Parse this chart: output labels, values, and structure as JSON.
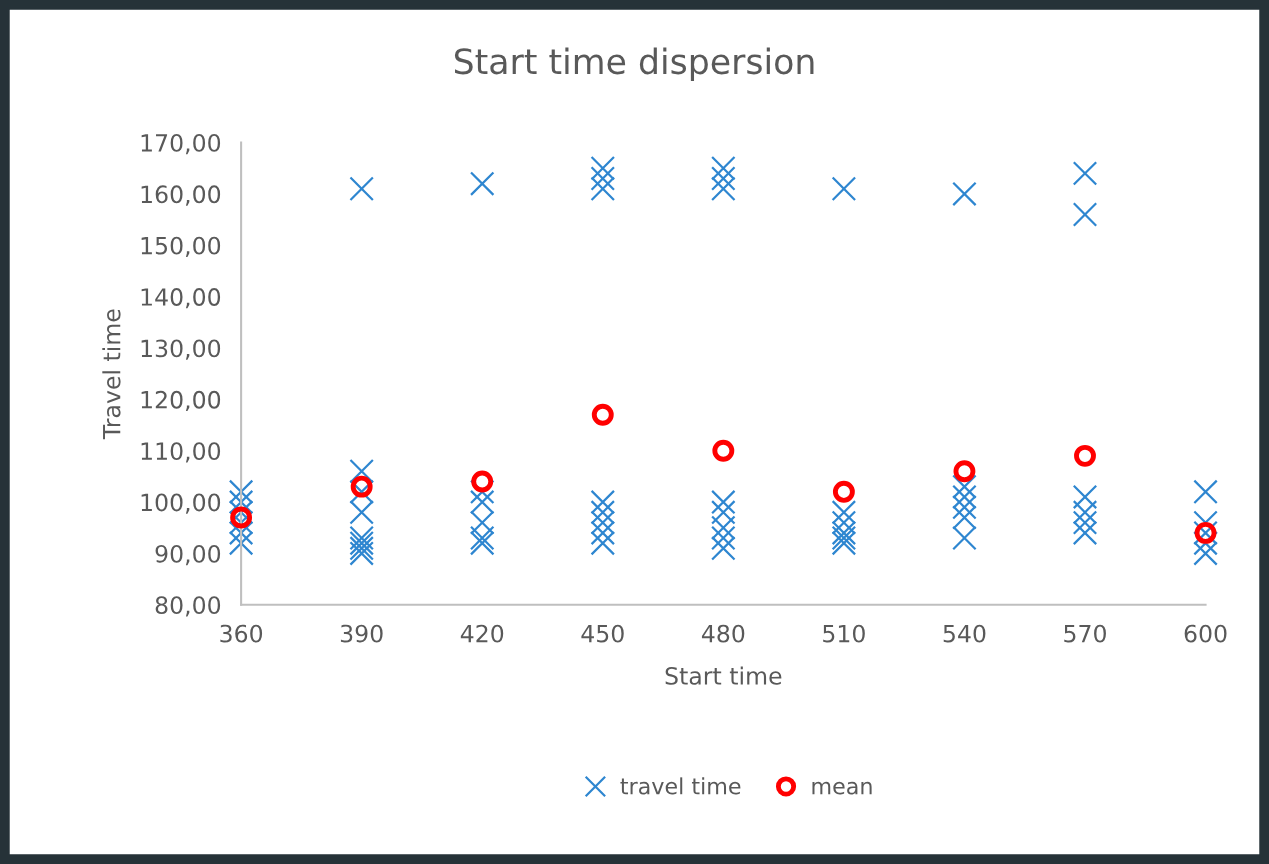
{
  "chart_data": {
    "type": "scatter",
    "title": "Start time dispersion",
    "xlabel": "Start time",
    "ylabel": "Travel time",
    "series": [
      {
        "name": "travel time",
        "color": "#2e86d0",
        "marker": "cross",
        "x": [
          360,
          360,
          360,
          360,
          360,
          360,
          390,
          390,
          390,
          390,
          390,
          390,
          390,
          390,
          420,
          420,
          420,
          420,
          420,
          420,
          450,
          450,
          450,
          450,
          450,
          450,
          450,
          450,
          480,
          480,
          480,
          480,
          480,
          480,
          480,
          480,
          510,
          510,
          510,
          510,
          510,
          510,
          540,
          540,
          540,
          540,
          540,
          540,
          570,
          570,
          570,
          570,
          570,
          570,
          600,
          600,
          600,
          600,
          600
        ],
        "values": [
          102,
          100,
          98,
          96,
          94,
          92,
          161,
          106,
          102,
          98,
          93,
          92,
          91,
          90,
          162,
          102,
          100,
          96,
          93,
          92,
          165,
          163,
          161,
          100,
          98,
          96,
          94,
          92,
          165,
          163,
          161,
          100,
          98,
          95,
          93,
          91,
          161,
          98,
          96,
          94,
          93,
          92,
          160,
          103,
          101,
          99,
          97,
          93,
          164,
          156,
          101,
          98,
          96,
          94,
          102,
          96,
          94,
          92,
          90
        ]
      },
      {
        "name": "mean",
        "color": "#ff0000",
        "marker": "circle",
        "x": [
          360,
          390,
          420,
          450,
          480,
          510,
          540,
          570,
          600
        ],
        "values": [
          97,
          103,
          104,
          117,
          110,
          102,
          106,
          109,
          94
        ]
      }
    ],
    "xlim": [
      360,
      600
    ],
    "xticks": [
      360,
      390,
      420,
      450,
      480,
      510,
      540,
      570,
      600
    ],
    "ylim": [
      80,
      170
    ],
    "yticks": [
      {
        "value": 80,
        "label": "80,00"
      },
      {
        "value": 90,
        "label": "90,00"
      },
      {
        "value": 100,
        "label": "100,00"
      },
      {
        "value": 110,
        "label": "110,00"
      },
      {
        "value": 120,
        "label": "120,00"
      },
      {
        "value": 130,
        "label": "130,00"
      },
      {
        "value": 140,
        "label": "140,00"
      },
      {
        "value": 150,
        "label": "150,00"
      },
      {
        "value": 160,
        "label": "160,00"
      },
      {
        "value": 170,
        "label": "170,00"
      }
    ],
    "grid": false,
    "legend": "bottom"
  }
}
